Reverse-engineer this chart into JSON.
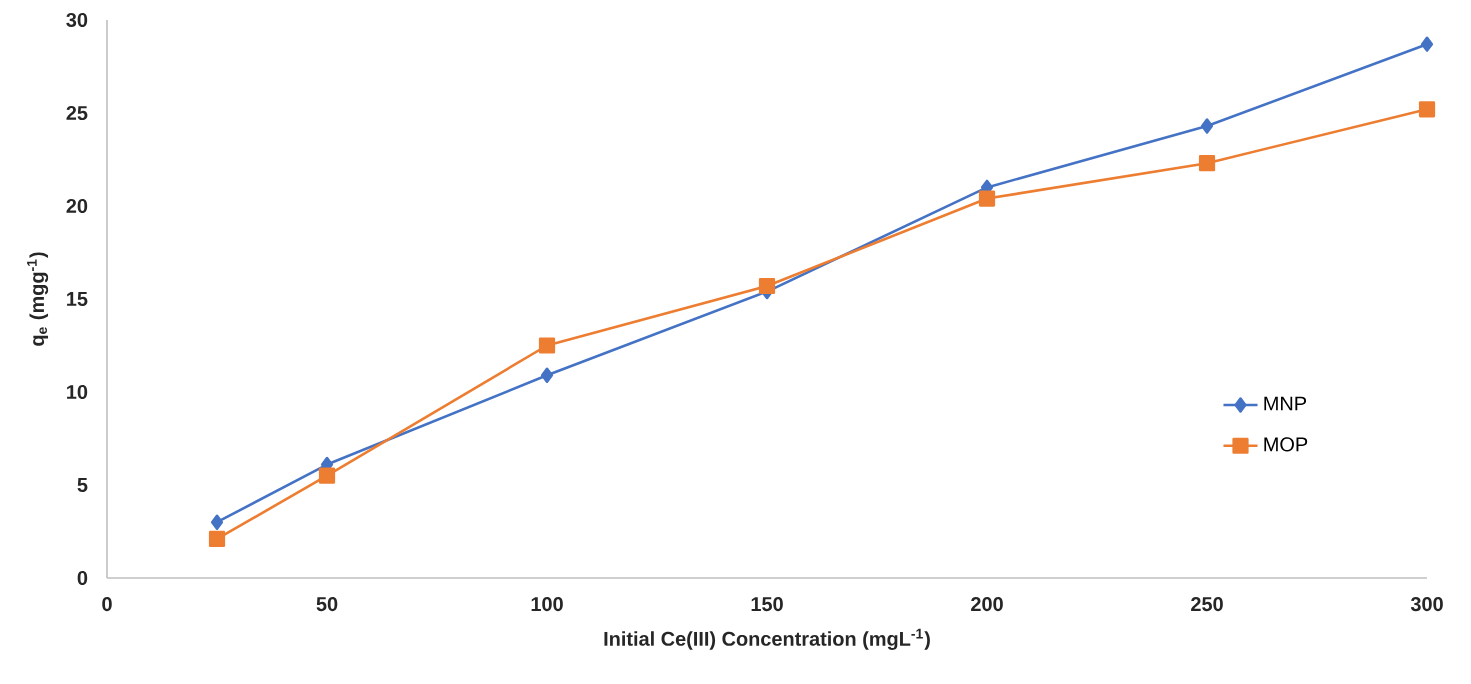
{
  "chart_data": {
    "type": "line",
    "xlabel": "Initial Ce(III) Concentration (mgL$^{-1}$)",
    "ylabel": "q$_{e}$ (mgg$^{-1}$)",
    "x": [
      25,
      50,
      100,
      150,
      200,
      250,
      300
    ],
    "series": [
      {
        "name": "MNP",
        "color": "#4472c4",
        "marker": "diamond",
        "values": [
          3.0,
          6.1,
          10.9,
          15.4,
          21.0,
          24.3,
          28.7
        ]
      },
      {
        "name": "MOP",
        "color": "#ed7d31",
        "marker": "square",
        "values": [
          2.1,
          5.5,
          12.5,
          15.7,
          20.4,
          22.3,
          25.2
        ]
      }
    ],
    "xlim": [
      0,
      300
    ],
    "xticks": [
      0,
      50,
      100,
      150,
      200,
      250,
      300
    ],
    "ylim": [
      0,
      30
    ],
    "yticks": [
      0,
      5,
      10,
      15,
      20,
      25,
      30
    ],
    "grid": false,
    "legend": "right",
    "line_style": "solid"
  }
}
